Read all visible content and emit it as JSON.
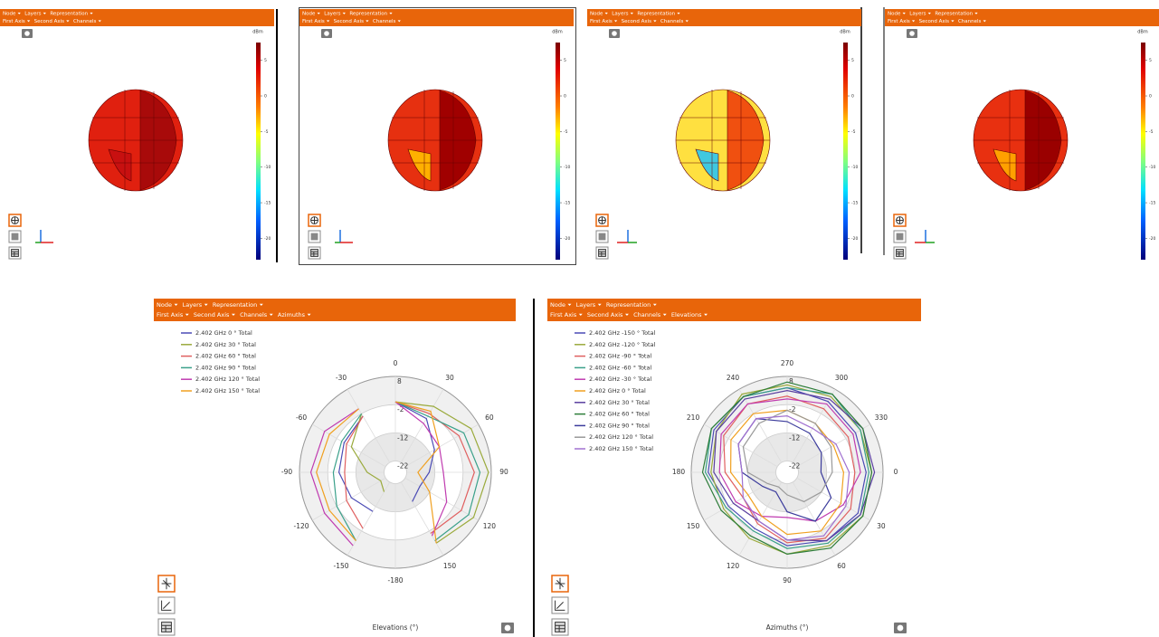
{
  "views3d": [
    {
      "menu": [
        "Node",
        "Layers",
        "Representation"
      ],
      "submenu": [
        "First Axis",
        "Second Axis",
        "Channels"
      ],
      "colorbar": {
        "title": "dBm",
        "lim": [
          -23,
          7.5
        ],
        "ticks": [
          5,
          0,
          -5,
          -10,
          -15,
          -20
        ]
      }
    },
    {
      "menu": [
        "Node",
        "Layers",
        "Representation"
      ],
      "submenu": [
        "First Axis",
        "Second Axis",
        "Channels"
      ],
      "colorbar": {
        "title": "dBm",
        "lim": [
          -23,
          7.5
        ],
        "ticks": [
          5,
          0,
          -5,
          -10,
          -15,
          -20
        ]
      }
    },
    {
      "menu": [
        "Node",
        "Layers",
        "Representation"
      ],
      "submenu": [
        "First Axis",
        "Second Axis",
        "Channels"
      ],
      "colorbar": {
        "title": "dBm",
        "lim": [
          -23,
          7.5
        ],
        "ticks": [
          5,
          0,
          -5,
          -10,
          -15,
          -20
        ]
      }
    },
    {
      "menu": [
        "Node",
        "Layers",
        "Representation"
      ],
      "submenu": [
        "First Axis",
        "Second Axis",
        "Channels"
      ],
      "colorbar": {
        "title": "dBm",
        "lim": [
          -23,
          7.5
        ],
        "ticks": [
          5,
          0,
          -5,
          -10,
          -15,
          -20
        ]
      }
    }
  ],
  "polar_panels": [
    {
      "menu": [
        "Node",
        "Layers",
        "Representation"
      ],
      "submenu": [
        "First Axis",
        "Second Axis",
        "Channels",
        "Azimuths"
      ]
    },
    {
      "menu": [
        "Node",
        "Layers",
        "Representation"
      ],
      "submenu": [
        "First Axis",
        "Second Axis",
        "Channels",
        "Elevations"
      ]
    }
  ],
  "chart_data": [
    {
      "type": "polar",
      "x_label": "Elevations (°)",
      "zero_location": "N",
      "direction": "clockwise",
      "x": [
        0,
        30,
        60,
        90,
        120,
        150,
        -180,
        -150,
        -120,
        -90,
        -60,
        -30
      ],
      "rlim": [
        -26,
        8
      ],
      "rticks": [
        8,
        -2,
        -12,
        -22
      ],
      "series": [
        {
          "name": "2.402 GHz 0 ° Total",
          "color": "#4b4bb5",
          "values": [
            -1,
            -4,
            -10,
            -14,
            -16,
            -14,
            null,
            -10,
            -8,
            -6,
            -5,
            -3
          ]
        },
        {
          "name": "2.402 GHz 30 ° Total",
          "color": "#9aaa3c",
          "values": [
            -1,
            1,
            5,
            7,
            6,
            3,
            null,
            -18,
            -20,
            -16,
            -8,
            -2
          ]
        },
        {
          "name": "2.402 GHz 60 ° Total",
          "color": "#e06060",
          "values": [
            -1,
            -2,
            0,
            2,
            1,
            -1,
            null,
            -3,
            -6,
            -8,
            -6,
            -3
          ]
        },
        {
          "name": "2.402 GHz 90 ° Total",
          "color": "#3aa08a",
          "values": [
            -1,
            -3,
            2,
            4,
            4,
            2,
            null,
            2,
            -2,
            -4,
            -4,
            -2
          ]
        },
        {
          "name": "2.402 GHz 120 ° Total",
          "color": "#c03cb0",
          "values": [
            -1,
            -6,
            -8,
            -9,
            -5,
            0,
            null,
            4,
            3,
            4,
            3,
            0
          ]
        },
        {
          "name": "2.402 GHz 150 ° Total",
          "color": "#f0a020",
          "values": [
            -1,
            -1,
            -8,
            -18,
            -12,
            3,
            null,
            2,
            1,
            2,
            1,
            0
          ]
        }
      ]
    },
    {
      "type": "polar",
      "x_label": "Azimuths (°)",
      "zero_location": "E",
      "direction": "clockwise",
      "x": [
        0,
        30,
        60,
        90,
        120,
        150,
        180,
        210,
        240,
        270,
        300,
        330
      ],
      "rlim": [
        -26,
        8
      ],
      "rticks": [
        8,
        -2,
        -12,
        -22
      ],
      "series": [
        {
          "name": "2.402 GHz -150 ° Total",
          "color": "#4b4bb5",
          "values": [
            2,
            3,
            2,
            0,
            -3,
            -2,
            2,
            4,
            5,
            4,
            3,
            2
          ]
        },
        {
          "name": "2.402 GHz -120 ° Total",
          "color": "#9aaa3c",
          "values": [
            4,
            5,
            4,
            3,
            1,
            0,
            1,
            3,
            6,
            5,
            5,
            4
          ]
        },
        {
          "name": "2.402 GHz -90 ° Total",
          "color": "#e06060",
          "values": [
            -2,
            0,
            1,
            -1,
            -5,
            -8,
            -4,
            0,
            2,
            1,
            0,
            -1
          ]
        },
        {
          "name": "2.402 GHz -60 ° Total",
          "color": "#3aa08a",
          "values": [
            3,
            4,
            3,
            1,
            -2,
            -1,
            3,
            5,
            5,
            4,
            6,
            4
          ]
        },
        {
          "name": "2.402 GHz -30 ° Total",
          "color": "#c03cb0",
          "values": [
            0,
            -3,
            -6,
            -10,
            -8,
            -5,
            -2,
            1,
            2,
            0,
            2,
            1
          ]
        },
        {
          "name": "2.402 GHz 0 ° Total",
          "color": "#f0a020",
          "values": [
            -6,
            -4,
            -2,
            -4,
            -8,
            -10,
            -6,
            -3,
            -2,
            -4,
            -6,
            -7
          ]
        },
        {
          "name": "2.402 GHz 30 ° Total",
          "color": "#5a3fa0",
          "values": [
            5,
            4,
            2,
            -2,
            -6,
            -4,
            0,
            3,
            4,
            3,
            4,
            5
          ]
        },
        {
          "name": "2.402 GHz 60 ° Total",
          "color": "#2e7d3a",
          "values": [
            4,
            5,
            5,
            3,
            0,
            1,
            4,
            5,
            5,
            6,
            6,
            5
          ]
        },
        {
          "name": "2.402 GHz 90 ° Total",
          "color": "#3c3c9c",
          "values": [
            -14,
            -8,
            -6,
            -12,
            -18,
            -16,
            -10,
            -6,
            -4,
            -8,
            -10,
            -12
          ]
        },
        {
          "name": "2.402 GHz 120 ° Total",
          "color": "#999999",
          "values": [
            -10,
            -12,
            -14,
            -18,
            -20,
            -18,
            -12,
            -8,
            -6,
            -4,
            -6,
            -8
          ]
        },
        {
          "name": "2.402 GHz 150 ° Total",
          "color": "#a070d0",
          "values": [
            -4,
            -2,
            0,
            -2,
            -6,
            -8,
            -10,
            -6,
            -4,
            -6,
            -8,
            -6
          ]
        }
      ]
    }
  ]
}
